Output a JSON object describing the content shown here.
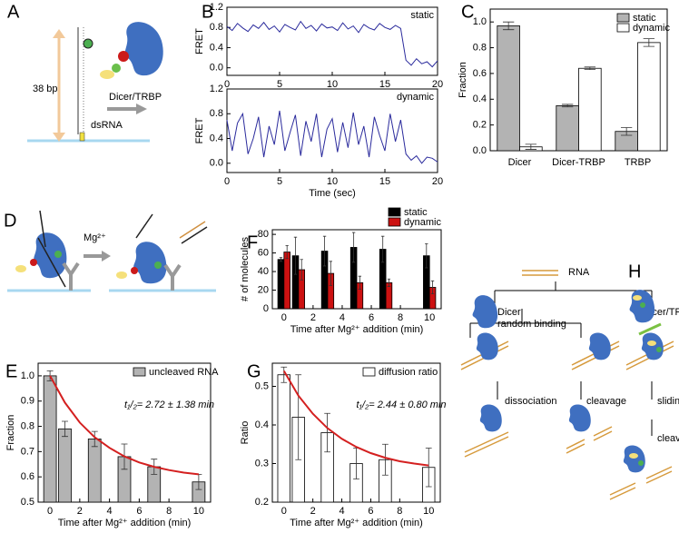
{
  "panel_labels": [
    "A",
    "B",
    "C",
    "D",
    "E",
    "F",
    "G",
    "H"
  ],
  "diagram_a": {
    "length_label": "38 bp",
    "rna_label": "dsRNA",
    "protein_label": "Dicer/TRBP"
  },
  "diagram_d": {
    "ion_label": "Mg²⁺"
  },
  "diagram_h": {
    "root": "RNA",
    "left_branch": "Dicer",
    "left_sub": "random binding",
    "right_branch": "Dicer/TRBP",
    "steps": [
      "dissociation",
      "cleavage",
      "sliding",
      "cleavage"
    ]
  },
  "chart_data": [
    {
      "type": "line",
      "label": "static",
      "ylabel": "FRET",
      "x": [
        0,
        0.5,
        1,
        1.5,
        2,
        2.5,
        3,
        3.5,
        4,
        4.5,
        5,
        5.5,
        6,
        6.5,
        7,
        7.5,
        8,
        8.5,
        9,
        9.5,
        10,
        10.5,
        11,
        11.5,
        12,
        12.5,
        13,
        13.5,
        14,
        14.5,
        15,
        15.5,
        16,
        16.5,
        17,
        17.5,
        18,
        18.5,
        19,
        19.5,
        20
      ],
      "series": [
        {
          "color": "#2a2a9c",
          "values": [
            0.82,
            0.74,
            0.88,
            0.79,
            0.72,
            0.85,
            0.78,
            0.9,
            0.76,
            0.83,
            0.71,
            0.86,
            0.8,
            0.75,
            0.92,
            0.78,
            0.84,
            0.73,
            0.87,
            0.79,
            0.81,
            0.74,
            0.89,
            0.77,
            0.83,
            0.7,
            0.86,
            0.79,
            0.75,
            0.88,
            0.8,
            0.76,
            0.84,
            0.78,
            0.15,
            0.05,
            0.18,
            0.08,
            0.12,
            0.02,
            0.14
          ]
        }
      ],
      "xlim": [
        0,
        20
      ],
      "xticks": [
        0,
        5,
        10,
        15,
        20
      ],
      "ylim": [
        -0.15,
        1.2
      ],
      "yticks": [
        {
          "value": 0,
          "label": "0.0"
        },
        0.4,
        0.8,
        1.2
      ]
    },
    {
      "type": "line",
      "label": "dynamic",
      "ylabel": "FRET",
      "xlabel": "Time (sec)",
      "x": [
        0,
        0.5,
        1,
        1.5,
        2,
        2.5,
        3,
        3.5,
        4,
        4.5,
        5,
        5.5,
        6,
        6.5,
        7,
        7.5,
        8,
        8.5,
        9,
        9.5,
        10,
        10.5,
        11,
        11.5,
        12,
        12.5,
        13,
        13.5,
        14,
        14.5,
        15,
        15.5,
        16,
        16.5,
        17,
        17.5,
        18,
        18.5,
        19,
        19.5,
        20
      ],
      "series": [
        {
          "color": "#2a2a9c",
          "values": [
            0.7,
            0.2,
            0.65,
            0.8,
            0.15,
            0.4,
            0.75,
            0.1,
            0.6,
            0.3,
            0.85,
            0.2,
            0.5,
            0.78,
            0.12,
            0.68,
            0.35,
            0.8,
            0.1,
            0.55,
            0.72,
            0.18,
            0.66,
            0.25,
            0.82,
            0.3,
            0.6,
            0.1,
            0.75,
            0.45,
            0.2,
            0.8,
            0.35,
            0.7,
            0.15,
            0.05,
            0.12,
            0.0,
            0.1,
            0.08,
            0.02
          ]
        }
      ],
      "xlim": [
        0,
        20
      ],
      "xticks": [
        0,
        5,
        10,
        15,
        20
      ],
      "ylim": [
        -0.15,
        1.2
      ],
      "yticks": [
        {
          "value": 0,
          "label": "0.0"
        },
        0.4,
        0.8,
        1.2
      ]
    },
    {
      "type": "bar",
      "ylabel": "Fraction",
      "categories": [
        "Dicer",
        "Dicer-TRBP",
        "TRBP"
      ],
      "legend": "upper right",
      "series": [
        {
          "name": "static",
          "color": "#b3b3b3",
          "values": [
            0.97,
            0.35,
            0.15
          ],
          "errors": [
            0.03,
            0.01,
            0.03
          ]
        },
        {
          "name": "dynamic",
          "color": "#ffffff",
          "values": [
            0.03,
            0.64,
            0.84
          ],
          "errors": [
            0.02,
            0.01,
            0.03
          ]
        }
      ],
      "ylim": [
        0,
        1.1
      ],
      "yticks": [
        {
          "value": 0,
          "label": "0.0"
        },
        0.2,
        0.4,
        0.6,
        0.8,
        {
          "value": 1,
          "label": "1.0"
        }
      ]
    },
    {
      "type": "bar",
      "ylabel": "Fraction",
      "xlabel": "Time after Mg²⁺ addition (min)",
      "legend": "upper right",
      "annotation": "t₁/₂= 2.72 ± 1.38 min",
      "x": [
        0,
        1,
        3,
        5,
        7,
        10
      ],
      "xlim": [
        -0.8,
        10.8
      ],
      "xticks": [
        0,
        2,
        4,
        6,
        8,
        10
      ],
      "series": [
        {
          "name": "uncleaved RNA",
          "color": "#b3b3b3",
          "values": [
            1.0,
            0.79,
            0.75,
            0.68,
            0.64,
            0.58
          ],
          "errors": [
            0.02,
            0.03,
            0.03,
            0.05,
            0.03,
            0.03
          ]
        }
      ],
      "fit": {
        "color": "#d42020",
        "x": [
          0,
          1,
          2,
          3,
          4,
          5,
          6,
          7,
          8,
          9,
          10
        ],
        "values": [
          1.0,
          0.894,
          0.815,
          0.757,
          0.715,
          0.681,
          0.657,
          0.64,
          0.627,
          0.617,
          0.61
        ]
      },
      "ylim": [
        0.5,
        1.05
      ],
      "yticks": [
        0.5,
        0.6,
        0.7,
        0.8,
        0.9,
        {
          "value": 1,
          "label": "1.0"
        }
      ]
    },
    {
      "type": "bar",
      "ylabel": "# of molecules",
      "xlabel": "Time after Mg²⁺ addition (min)",
      "legend": "above right",
      "x": [
        0,
        1,
        3,
        5,
        7,
        10
      ],
      "xlim": [
        -0.8,
        10.8
      ],
      "xticks": [
        0,
        2,
        4,
        6,
        8,
        10
      ],
      "series": [
        {
          "name": "static",
          "color": "#000000",
          "values": [
            53,
            57,
            62,
            66,
            64,
            57
          ],
          "errors": [
            2,
            20,
            16,
            16,
            14,
            13
          ]
        },
        {
          "name": "dynamic",
          "color": "#cc1111",
          "values": [
            61,
            42,
            38,
            28,
            28,
            23
          ],
          "errors": [
            7,
            11,
            13,
            7,
            4,
            7
          ]
        }
      ],
      "ylim": [
        0,
        85
      ],
      "yticks": [
        0,
        20,
        40,
        60,
        80
      ]
    },
    {
      "type": "bar",
      "ylabel": "Ratio",
      "xlabel": "Time after Mg²⁺ addition (min)",
      "legend": "upper right",
      "annotation": "t₁/₂= 2.44 ± 0.80 min",
      "x": [
        0,
        1,
        3,
        5,
        7,
        10
      ],
      "xlim": [
        -0.8,
        10.8
      ],
      "xticks": [
        0,
        2,
        4,
        6,
        8,
        10
      ],
      "series": [
        {
          "name": "diffusion ratio",
          "color": "#ffffff",
          "values": [
            0.53,
            0.42,
            0.38,
            0.3,
            0.31,
            0.29
          ],
          "errors": [
            0.02,
            0.11,
            0.05,
            0.04,
            0.04,
            0.05
          ]
        }
      ],
      "fit": {
        "color": "#d42020",
        "x": [
          0,
          1,
          2,
          3,
          4,
          5,
          6,
          7,
          8,
          9,
          10
        ],
        "values": [
          0.54,
          0.476,
          0.429,
          0.392,
          0.364,
          0.343,
          0.327,
          0.315,
          0.306,
          0.3,
          0.295
        ]
      },
      "ylim": [
        0.2,
        0.56
      ],
      "yticks": [
        0.2,
        0.3,
        0.4,
        0.5
      ]
    }
  ]
}
